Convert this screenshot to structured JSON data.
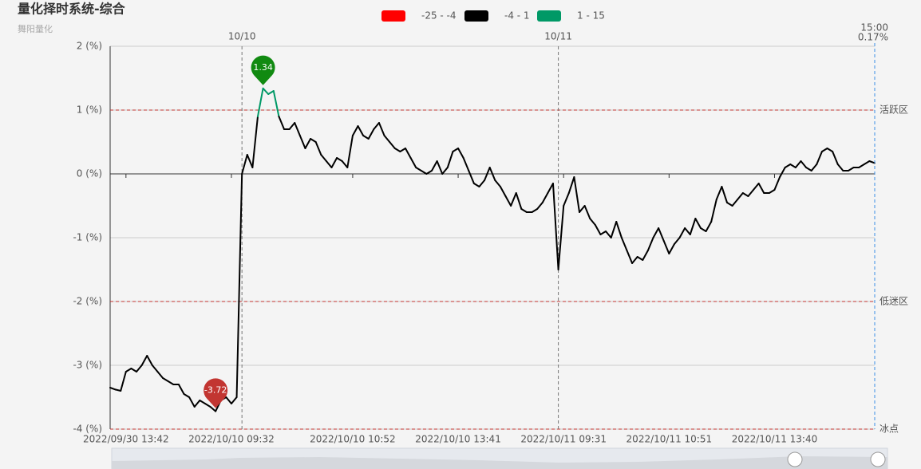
{
  "chart_data": {
    "type": "line",
    "title": "量化择时系统-综合",
    "subtitle": "舞阳量化",
    "categories": [
      null,
      null,
      null,
      "2022/09/30 13:42",
      null,
      null,
      null,
      null,
      null,
      null,
      null,
      null,
      null,
      null,
      null,
      null,
      null,
      null,
      null,
      null,
      null,
      null,
      null,
      "2022/10/10 09:32",
      null,
      null,
      null,
      null,
      null,
      null,
      null,
      null,
      null,
      null,
      null,
      null,
      null,
      null,
      null,
      null,
      null,
      null,
      null,
      null,
      null,
      null,
      "2022/10/10 10:52",
      null,
      null,
      null,
      null,
      null,
      null,
      null,
      null,
      null,
      null,
      null,
      null,
      null,
      null,
      null,
      null,
      null,
      null,
      null,
      "2022/10/10 13:41",
      null,
      null,
      null,
      null,
      null,
      null,
      null,
      null,
      null,
      null,
      null,
      null,
      null,
      null,
      null,
      null,
      null,
      null,
      null,
      "2022/10/11 09:31",
      null,
      null,
      null,
      null,
      null,
      null,
      null,
      null,
      null,
      null,
      null,
      null,
      null,
      null,
      null,
      null,
      null,
      null,
      null,
      "2022/10/11 10:51",
      null,
      null,
      null,
      null,
      null,
      null,
      null,
      null,
      null,
      null,
      null,
      null,
      null,
      null,
      null,
      null,
      null,
      null,
      null,
      "2022/10/11 13:40",
      null,
      null,
      null,
      null,
      null,
      null,
      null,
      null,
      null,
      null,
      null,
      null,
      null,
      null,
      null,
      null,
      null,
      null,
      null
    ],
    "series": [
      {
        "name": "综合",
        "values": [
          -3.35,
          -3.38,
          -3.4,
          -3.1,
          -3.05,
          -3.1,
          -3.0,
          -2.85,
          -3.0,
          -3.1,
          -3.2,
          -3.25,
          -3.3,
          -3.3,
          -3.45,
          -3.5,
          -3.65,
          -3.55,
          -3.6,
          -3.65,
          -3.72,
          -3.55,
          -3.5,
          -3.6,
          -3.5,
          0.0,
          0.3,
          0.1,
          0.9,
          1.34,
          1.25,
          1.3,
          0.9,
          0.7,
          0.7,
          0.8,
          0.6,
          0.4,
          0.55,
          0.5,
          0.3,
          0.2,
          0.1,
          0.25,
          0.2,
          0.1,
          0.6,
          0.75,
          0.6,
          0.55,
          0.7,
          0.8,
          0.6,
          0.5,
          0.4,
          0.35,
          0.4,
          0.25,
          0.1,
          0.05,
          0.0,
          0.05,
          0.2,
          0.0,
          0.1,
          0.35,
          0.4,
          0.25,
          0.05,
          -0.15,
          -0.2,
          -0.1,
          0.1,
          -0.1,
          -0.2,
          -0.35,
          -0.5,
          -0.3,
          -0.55,
          -0.6,
          -0.6,
          -0.55,
          -0.45,
          -0.3,
          -0.15,
          -1.5,
          -0.5,
          -0.3,
          -0.05,
          -0.6,
          -0.5,
          -0.7,
          -0.8,
          -0.95,
          -0.9,
          -1.0,
          -0.75,
          -1.0,
          -1.2,
          -1.4,
          -1.3,
          -1.35,
          -1.2,
          -1.0,
          -0.85,
          -1.05,
          -1.25,
          -1.1,
          -1.0,
          -0.85,
          -0.95,
          -0.7,
          -0.85,
          -0.9,
          -0.75,
          -0.4,
          -0.2,
          -0.45,
          -0.5,
          -0.4,
          -0.3,
          -0.35,
          -0.25,
          -0.15,
          -0.3,
          -0.3,
          -0.25,
          -0.05,
          0.1,
          0.15,
          0.1,
          0.2,
          0.1,
          0.05,
          0.15,
          0.35,
          0.4,
          0.35,
          0.15,
          0.05,
          0.05,
          0.1,
          0.1,
          0.15,
          0.2,
          0.17
        ]
      }
    ],
    "pieces": [
      {
        "min": -25,
        "max": -4,
        "label": "-25 - -4",
        "color": "#ff0000"
      },
      {
        "min": -4,
        "max": 1,
        "label": "-4 - 1",
        "color": "#000000"
      },
      {
        "min": 1,
        "max": 15,
        "label": "1 - 15",
        "color": "#009966"
      }
    ],
    "ylim": [
      -4,
      2
    ],
    "yticks": [
      {
        "value": -4,
        "label": "-4 (%)"
      },
      {
        "value": -3,
        "label": "-3 (%)"
      },
      {
        "value": -2,
        "label": "-2 (%)"
      },
      {
        "value": -1,
        "label": "-1 (%)"
      },
      {
        "value": 0,
        "label": "0 (%)"
      },
      {
        "value": 1,
        "label": "1 (%)"
      },
      {
        "value": 2,
        "label": "2 (%)"
      }
    ],
    "grid": true,
    "mark_lines": [
      {
        "value": 1,
        "label": "活跃区"
      },
      {
        "value": -2,
        "label": "低迷区"
      },
      {
        "value": -4,
        "label": "冰点"
      }
    ],
    "mark_line_color": "#c23531",
    "day_lines": [
      {
        "x": 25,
        "label": "10/10"
      },
      {
        "x": 85,
        "label": "10/11"
      }
    ],
    "end_marker": {
      "time": "15:00",
      "value": 0.17,
      "label": "0.17%",
      "color": "#3a8ee6"
    },
    "mark_points": {
      "max_color": "#118a11",
      "min_color": "#c23531"
    }
  }
}
